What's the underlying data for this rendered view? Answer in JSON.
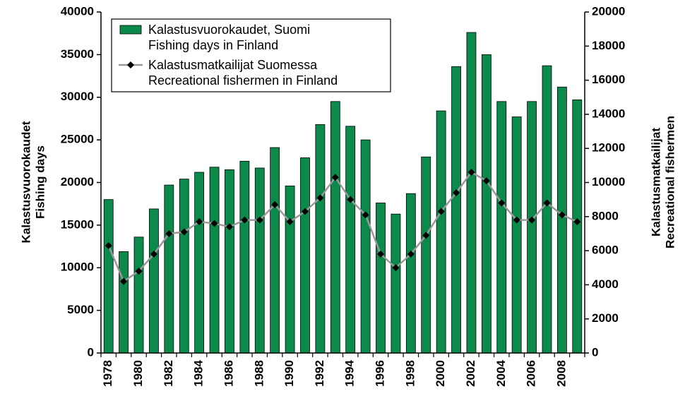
{
  "chart_data": {
    "type": "bar-line",
    "categories": [
      "1978",
      null,
      "1980",
      null,
      "1982",
      null,
      "1984",
      null,
      "1986",
      null,
      "1988",
      null,
      "1990",
      null,
      "1992",
      null,
      "1994",
      null,
      "1996",
      null,
      "1998",
      null,
      "2000",
      null,
      "2002",
      null,
      "2004",
      null,
      "2006",
      null,
      "2008",
      null
    ],
    "ylabel": [
      "Kalastusvuorokaudet",
      "Fishing days"
    ],
    "y2label": [
      "Kalastusmatkailijat",
      "Recreational fishermen"
    ],
    "series": [
      {
        "name": "Kalastusvuorokaudet, Suomi\nFishing days in Finland",
        "type": "bar",
        "color": "#0b8a4c",
        "values": [
          18000,
          11900,
          13600,
          16900,
          19700,
          20400,
          21200,
          21800,
          21500,
          22500,
          21700,
          24100,
          19600,
          22900,
          26800,
          29500,
          26600,
          25000,
          17600,
          16300,
          18700,
          23000,
          28400,
          33600,
          37600,
          35000,
          29500,
          27700,
          29500,
          33700,
          31200,
          29700
        ]
      },
      {
        "name": "Kalastusmatkailijat Suomessa\nRecreational fishermen in Finland",
        "type": "line",
        "axis": "y2",
        "color": "#999999",
        "marker_color": "#000000",
        "values": [
          6300,
          4200,
          4800,
          5800,
          7000,
          7100,
          7700,
          7600,
          7400,
          7800,
          7800,
          8700,
          7700,
          8300,
          9100,
          10300,
          9000,
          8100,
          5800,
          5000,
          5800,
          6900,
          8300,
          9400,
          10600,
          10100,
          8800,
          7800,
          7800,
          8800,
          8100,
          7700
        ]
      }
    ],
    "ylim": [
      0,
      40000
    ],
    "yticks": [
      0,
      5000,
      10000,
      15000,
      20000,
      25000,
      30000,
      35000,
      40000
    ],
    "y2lim": [
      0,
      20000
    ],
    "y2ticks": [
      0,
      2000,
      4000,
      6000,
      8000,
      10000,
      12000,
      14000,
      16000,
      18000,
      20000
    ],
    "grid": false
  }
}
